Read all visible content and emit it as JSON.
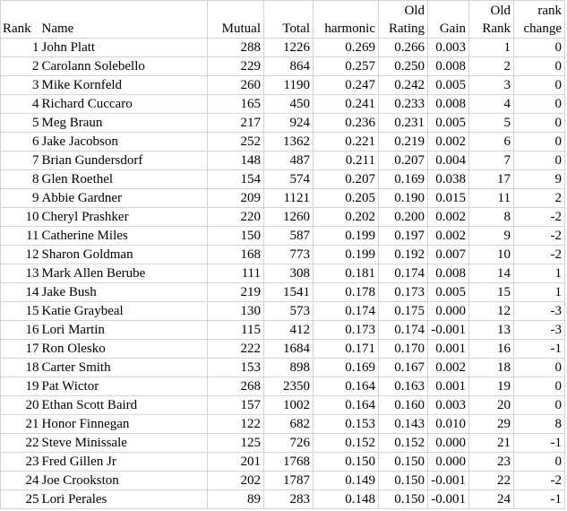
{
  "table": {
    "header": [
      [
        "Rank"
      ],
      [
        "Name"
      ],
      [
        "Mutual"
      ],
      [
        "Total"
      ],
      [
        "harmonic"
      ],
      [
        "Old",
        "Rating"
      ],
      [
        "Gain"
      ],
      [
        "Old",
        "Rank"
      ],
      [
        "rank",
        "change"
      ]
    ],
    "rows": [
      [
        "1",
        "John Platt",
        "288",
        "1226",
        "0.269",
        "0.266",
        "0.003",
        "1",
        "0"
      ],
      [
        "2",
        "Carolann Solebello",
        "229",
        "864",
        "0.257",
        "0.250",
        "0.008",
        "2",
        "0"
      ],
      [
        "3",
        "Mike Kornfeld",
        "260",
        "1190",
        "0.247",
        "0.242",
        "0.005",
        "3",
        "0"
      ],
      [
        "4",
        "Richard Cuccaro",
        "165",
        "450",
        "0.241",
        "0.233",
        "0.008",
        "4",
        "0"
      ],
      [
        "5",
        "Meg Braun",
        "217",
        "924",
        "0.236",
        "0.231",
        "0.005",
        "5",
        "0"
      ],
      [
        "6",
        "Jake Jacobson",
        "252",
        "1362",
        "0.221",
        "0.219",
        "0.002",
        "6",
        "0"
      ],
      [
        "7",
        "Brian Gundersdorf",
        "148",
        "487",
        "0.211",
        "0.207",
        "0.004",
        "7",
        "0"
      ],
      [
        "8",
        "Glen Roethel",
        "154",
        "574",
        "0.207",
        "0.169",
        "0.038",
        "17",
        "9"
      ],
      [
        "9",
        "Abbie Gardner",
        "209",
        "1121",
        "0.205",
        "0.190",
        "0.015",
        "11",
        "2"
      ],
      [
        "10",
        "Cheryl Prashker",
        "220",
        "1260",
        "0.202",
        "0.200",
        "0.002",
        "8",
        "-2"
      ],
      [
        "11",
        "Catherine Miles",
        "150",
        "587",
        "0.199",
        "0.197",
        "0.002",
        "9",
        "-2"
      ],
      [
        "12",
        "Sharon Goldman",
        "168",
        "773",
        "0.199",
        "0.192",
        "0.007",
        "10",
        "-2"
      ],
      [
        "13",
        "Mark Allen Berube",
        "111",
        "308",
        "0.181",
        "0.174",
        "0.008",
        "14",
        "1"
      ],
      [
        "14",
        "Jake Bush",
        "219",
        "1541",
        "0.178",
        "0.173",
        "0.005",
        "15",
        "1"
      ],
      [
        "15",
        "Katie Graybeal",
        "130",
        "573",
        "0.174",
        "0.175",
        "0.000",
        "12",
        "-3"
      ],
      [
        "16",
        "Lori Martin",
        "115",
        "412",
        "0.173",
        "0.174",
        "-0.001",
        "13",
        "-3"
      ],
      [
        "17",
        "Ron Olesko",
        "222",
        "1684",
        "0.171",
        "0.170",
        "0.001",
        "16",
        "-1"
      ],
      [
        "18",
        "Carter Smith",
        "153",
        "898",
        "0.169",
        "0.167",
        "0.002",
        "18",
        "0"
      ],
      [
        "19",
        "Pat Wictor",
        "268",
        "2350",
        "0.164",
        "0.163",
        "0.001",
        "19",
        "0"
      ],
      [
        "20",
        "Ethan Scott Baird",
        "157",
        "1002",
        "0.164",
        "0.160",
        "0.003",
        "20",
        "0"
      ],
      [
        "21",
        "Honor Finnegan",
        "122",
        "682",
        "0.153",
        "0.143",
        "0.010",
        "29",
        "8"
      ],
      [
        "22",
        "Steve Minissale",
        "125",
        "726",
        "0.152",
        "0.152",
        "0.000",
        "21",
        "-1"
      ],
      [
        "23",
        "Fred Gillen Jr",
        "201",
        "1768",
        "0.150",
        "0.150",
        "0.000",
        "23",
        "0"
      ],
      [
        "24",
        "Joe Crookston",
        "202",
        "1787",
        "0.149",
        "0.150",
        "-0.001",
        "22",
        "-2"
      ],
      [
        "25",
        "Lori Perales",
        "89",
        "283",
        "0.148",
        "0.150",
        "-0.001",
        "24",
        "-1"
      ]
    ]
  }
}
